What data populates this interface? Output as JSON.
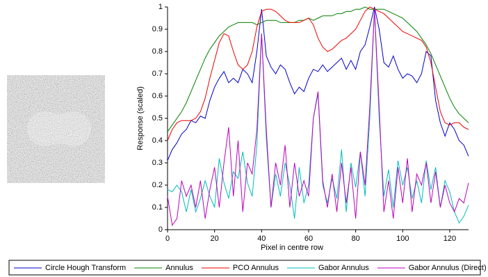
{
  "chart_data": {
    "type": "line",
    "xlabel": "Pixel in centre row",
    "ylabel": "Response (scaled)",
    "x": [
      0,
      2,
      4,
      6,
      8,
      10,
      12,
      14,
      16,
      18,
      20,
      22,
      24,
      26,
      28,
      30,
      32,
      34,
      36,
      38,
      40,
      42,
      44,
      46,
      48,
      50,
      52,
      54,
      56,
      58,
      60,
      62,
      64,
      66,
      68,
      70,
      72,
      74,
      76,
      78,
      80,
      82,
      84,
      86,
      88,
      90,
      92,
      94,
      96,
      98,
      100,
      102,
      104,
      106,
      108,
      110,
      112,
      114,
      116,
      118,
      120,
      122,
      124,
      126,
      128
    ],
    "xlim": [
      0,
      128
    ],
    "xticks": [
      0,
      20,
      40,
      60,
      80,
      100,
      120
    ],
    "ylim": [
      0,
      1
    ],
    "yticks": [
      0,
      0.1,
      0.2,
      0.3,
      0.4,
      0.5,
      0.6,
      0.7,
      0.8,
      0.9,
      1
    ],
    "series": [
      {
        "name": "Circle Hough Transform",
        "color": "#0000cc",
        "values": [
          0.31,
          0.36,
          0.39,
          0.43,
          0.45,
          0.49,
          0.48,
          0.51,
          0.5,
          0.58,
          0.64,
          0.68,
          0.71,
          0.66,
          0.68,
          0.66,
          0.72,
          0.7,
          0.66,
          0.8,
          0.99,
          0.78,
          0.73,
          0.7,
          0.74,
          0.72,
          0.66,
          0.61,
          0.64,
          0.62,
          0.68,
          0.72,
          0.71,
          0.74,
          0.71,
          0.73,
          0.75,
          0.77,
          0.72,
          0.76,
          0.72,
          0.8,
          0.83,
          0.91,
          1.0,
          0.9,
          0.75,
          0.73,
          0.78,
          0.72,
          0.68,
          0.7,
          0.69,
          0.66,
          0.7,
          0.8,
          0.78,
          0.58,
          0.48,
          0.42,
          0.48,
          0.45,
          0.4,
          0.38,
          0.33
        ]
      },
      {
        "name": "Annulus",
        "color": "#008000",
        "values": [
          0.44,
          0.47,
          0.5,
          0.53,
          0.57,
          0.62,
          0.67,
          0.72,
          0.77,
          0.81,
          0.84,
          0.87,
          0.89,
          0.91,
          0.92,
          0.93,
          0.93,
          0.93,
          0.93,
          0.92,
          0.93,
          0.94,
          0.94,
          0.94,
          0.93,
          0.93,
          0.93,
          0.93,
          0.94,
          0.94,
          0.95,
          0.94,
          0.95,
          0.96,
          0.96,
          0.96,
          0.97,
          0.97,
          0.98,
          0.98,
          0.99,
          0.99,
          1.0,
          0.99,
          0.99,
          0.99,
          0.99,
          0.98,
          0.97,
          0.96,
          0.95,
          0.93,
          0.91,
          0.89,
          0.86,
          0.83,
          0.79,
          0.74,
          0.69,
          0.64,
          0.59,
          0.55,
          0.52,
          0.5,
          0.48
        ]
      },
      {
        "name": "PCO Annulus",
        "color": "#ee0000",
        "values": [
          0.4,
          0.45,
          0.48,
          0.49,
          0.49,
          0.49,
          0.5,
          0.53,
          0.59,
          0.68,
          0.76,
          0.84,
          0.88,
          0.87,
          0.8,
          0.74,
          0.72,
          0.74,
          0.8,
          0.91,
          0.98,
          0.99,
          0.99,
          0.98,
          0.96,
          0.94,
          0.93,
          0.93,
          0.93,
          0.94,
          0.95,
          0.92,
          0.86,
          0.82,
          0.8,
          0.81,
          0.83,
          0.85,
          0.86,
          0.88,
          0.9,
          0.94,
          0.98,
          1.0,
          0.99,
          0.98,
          0.97,
          0.95,
          0.93,
          0.91,
          0.89,
          0.88,
          0.87,
          0.86,
          0.85,
          0.82,
          0.75,
          0.64,
          0.53,
          0.48,
          0.47,
          0.48,
          0.48,
          0.46,
          0.45
        ]
      },
      {
        "name": "Gabor Annulus",
        "color": "#00bbbb",
        "values": [
          0.18,
          0.17,
          0.2,
          0.17,
          0.08,
          0.18,
          0.08,
          0.14,
          0.22,
          0.15,
          0.1,
          0.32,
          0.21,
          0.14,
          0.26,
          0.23,
          0.35,
          0.21,
          0.15,
          0.38,
          0.88,
          0.41,
          0.1,
          0.25,
          0.15,
          0.3,
          0.2,
          0.05,
          0.28,
          0.12,
          0.2,
          0.5,
          0.61,
          0.2,
          0.12,
          0.23,
          0.14,
          0.36,
          0.08,
          0.3,
          0.19,
          0.35,
          0.15,
          0.5,
          0.99,
          0.5,
          0.15,
          0.27,
          0.1,
          0.31,
          0.2,
          0.28,
          0.14,
          0.22,
          0.12,
          0.31,
          0.18,
          0.28,
          0.1,
          0.22,
          0.17,
          0.08,
          0.03,
          0.06,
          0.11
        ]
      },
      {
        "name": "Gabor Annulus (Direct)",
        "color": "#bb00bb",
        "values": [
          0.15,
          0.02,
          0.05,
          0.22,
          0.15,
          0.2,
          0.1,
          0.22,
          0.05,
          0.18,
          0.28,
          0.1,
          0.3,
          0.46,
          0.15,
          0.4,
          0.08,
          0.3,
          0.25,
          0.45,
          0.88,
          0.45,
          0.1,
          0.3,
          0.2,
          0.38,
          0.1,
          0.3,
          0.15,
          0.22,
          0.15,
          0.5,
          0.62,
          0.22,
          0.1,
          0.25,
          0.08,
          0.3,
          0.12,
          0.28,
          0.05,
          0.35,
          0.2,
          0.55,
          0.99,
          0.55,
          0.08,
          0.22,
          0.05,
          0.28,
          0.12,
          0.32,
          0.08,
          0.25,
          0.2,
          0.3,
          0.12,
          0.26,
          0.1,
          0.2,
          0.12,
          0.08,
          0.14,
          0.12,
          0.21
        ]
      }
    ]
  }
}
